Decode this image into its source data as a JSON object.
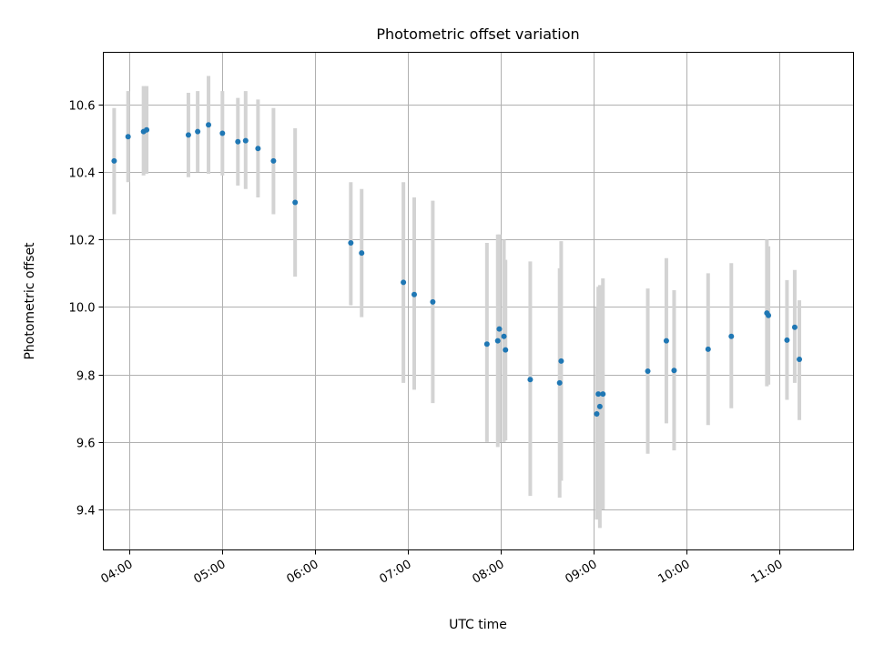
{
  "chart_data": {
    "type": "scatter",
    "title": "Photometric offset variation",
    "xlabel": "UTC time",
    "ylabel": "Photometric offset",
    "xlim": [
      "03:43",
      "11:48"
    ],
    "ylim": [
      9.28,
      10.755
    ],
    "x_ticks": [
      "04:00",
      "05:00",
      "06:00",
      "07:00",
      "08:00",
      "09:00",
      "10:00",
      "11:00"
    ],
    "y_ticks": [
      9.4,
      9.6,
      9.8,
      10.0,
      10.2,
      10.4,
      10.6
    ],
    "y_tick_labels": [
      "9.4",
      "9.6",
      "9.8",
      "10.0",
      "10.2",
      "10.4",
      "10.6"
    ],
    "grid": true,
    "marker_color": "#1f77b4",
    "errorbar_color": "#d3d3d3",
    "points": [
      {
        "x": "03:50",
        "y": 10.433,
        "low": 10.275,
        "high": 10.59
      },
      {
        "x": "03:59",
        "y": 10.505,
        "low": 10.37,
        "high": 10.64
      },
      {
        "x": "04:09",
        "y": 10.52,
        "low": 10.39,
        "high": 10.655
      },
      {
        "x": "04:11",
        "y": 10.525,
        "low": 10.395,
        "high": 10.655
      },
      {
        "x": "04:38",
        "y": 10.51,
        "low": 10.385,
        "high": 10.635
      },
      {
        "x": "04:44",
        "y": 10.52,
        "low": 10.4,
        "high": 10.64
      },
      {
        "x": "04:51",
        "y": 10.54,
        "low": 10.395,
        "high": 10.685
      },
      {
        "x": "05:00",
        "y": 10.515,
        "low": 10.39,
        "high": 10.64
      },
      {
        "x": "05:10",
        "y": 10.49,
        "low": 10.36,
        "high": 10.62
      },
      {
        "x": "05:15",
        "y": 10.493,
        "low": 10.35,
        "high": 10.64
      },
      {
        "x": "05:23",
        "y": 10.47,
        "low": 10.325,
        "high": 10.615
      },
      {
        "x": "05:33",
        "y": 10.433,
        "low": 10.275,
        "high": 10.59
      },
      {
        "x": "05:47",
        "y": 10.31,
        "low": 10.09,
        "high": 10.53
      },
      {
        "x": "06:23",
        "y": 10.19,
        "low": 10.005,
        "high": 10.37
      },
      {
        "x": "06:30",
        "y": 10.16,
        "low": 9.97,
        "high": 10.35
      },
      {
        "x": "06:57",
        "y": 10.073,
        "low": 9.775,
        "high": 10.37
      },
      {
        "x": "07:04",
        "y": 10.037,
        "low": 9.755,
        "high": 10.325
      },
      {
        "x": "07:16",
        "y": 10.015,
        "low": 9.715,
        "high": 10.315
      },
      {
        "x": "07:51",
        "y": 9.89,
        "low": 9.6,
        "high": 10.19
      },
      {
        "x": "07:58",
        "y": 9.9,
        "low": 9.585,
        "high": 10.215
      },
      {
        "x": "07:59",
        "y": 9.935,
        "low": 9.6,
        "high": 10.215
      },
      {
        "x": "08:02",
        "y": 9.913,
        "low": 9.6,
        "high": 10.2
      },
      {
        "x": "08:03",
        "y": 9.873,
        "low": 9.605,
        "high": 10.14
      },
      {
        "x": "08:19",
        "y": 9.785,
        "low": 9.44,
        "high": 10.135
      },
      {
        "x": "08:38",
        "y": 9.775,
        "low": 9.435,
        "high": 10.115
      },
      {
        "x": "08:39",
        "y": 9.84,
        "low": 9.485,
        "high": 10.195
      },
      {
        "x": "09:02",
        "y": 9.683,
        "low": 9.37,
        "high": 10.0
      },
      {
        "x": "09:03",
        "y": 9.742,
        "low": 9.38,
        "high": 10.06
      },
      {
        "x": "09:04",
        "y": 9.705,
        "low": 9.345,
        "high": 10.065
      },
      {
        "x": "09:06",
        "y": 9.742,
        "low": 9.4,
        "high": 10.085
      },
      {
        "x": "09:35",
        "y": 9.81,
        "low": 9.565,
        "high": 10.055
      },
      {
        "x": "09:47",
        "y": 9.9,
        "low": 9.655,
        "high": 10.145
      },
      {
        "x": "09:52",
        "y": 9.812,
        "low": 9.575,
        "high": 10.05
      },
      {
        "x": "10:14",
        "y": 9.875,
        "low": 9.65,
        "high": 10.1
      },
      {
        "x": "10:29",
        "y": 9.913,
        "low": 9.7,
        "high": 10.13
      },
      {
        "x": "10:52",
        "y": 9.982,
        "low": 9.765,
        "high": 10.2
      },
      {
        "x": "10:53",
        "y": 9.975,
        "low": 9.77,
        "high": 10.18
      },
      {
        "x": "11:05",
        "y": 9.902,
        "low": 9.725,
        "high": 10.08
      },
      {
        "x": "11:10",
        "y": 9.94,
        "low": 9.775,
        "high": 10.11
      },
      {
        "x": "11:13",
        "y": 9.845,
        "low": 9.665,
        "high": 10.02
      }
    ]
  }
}
